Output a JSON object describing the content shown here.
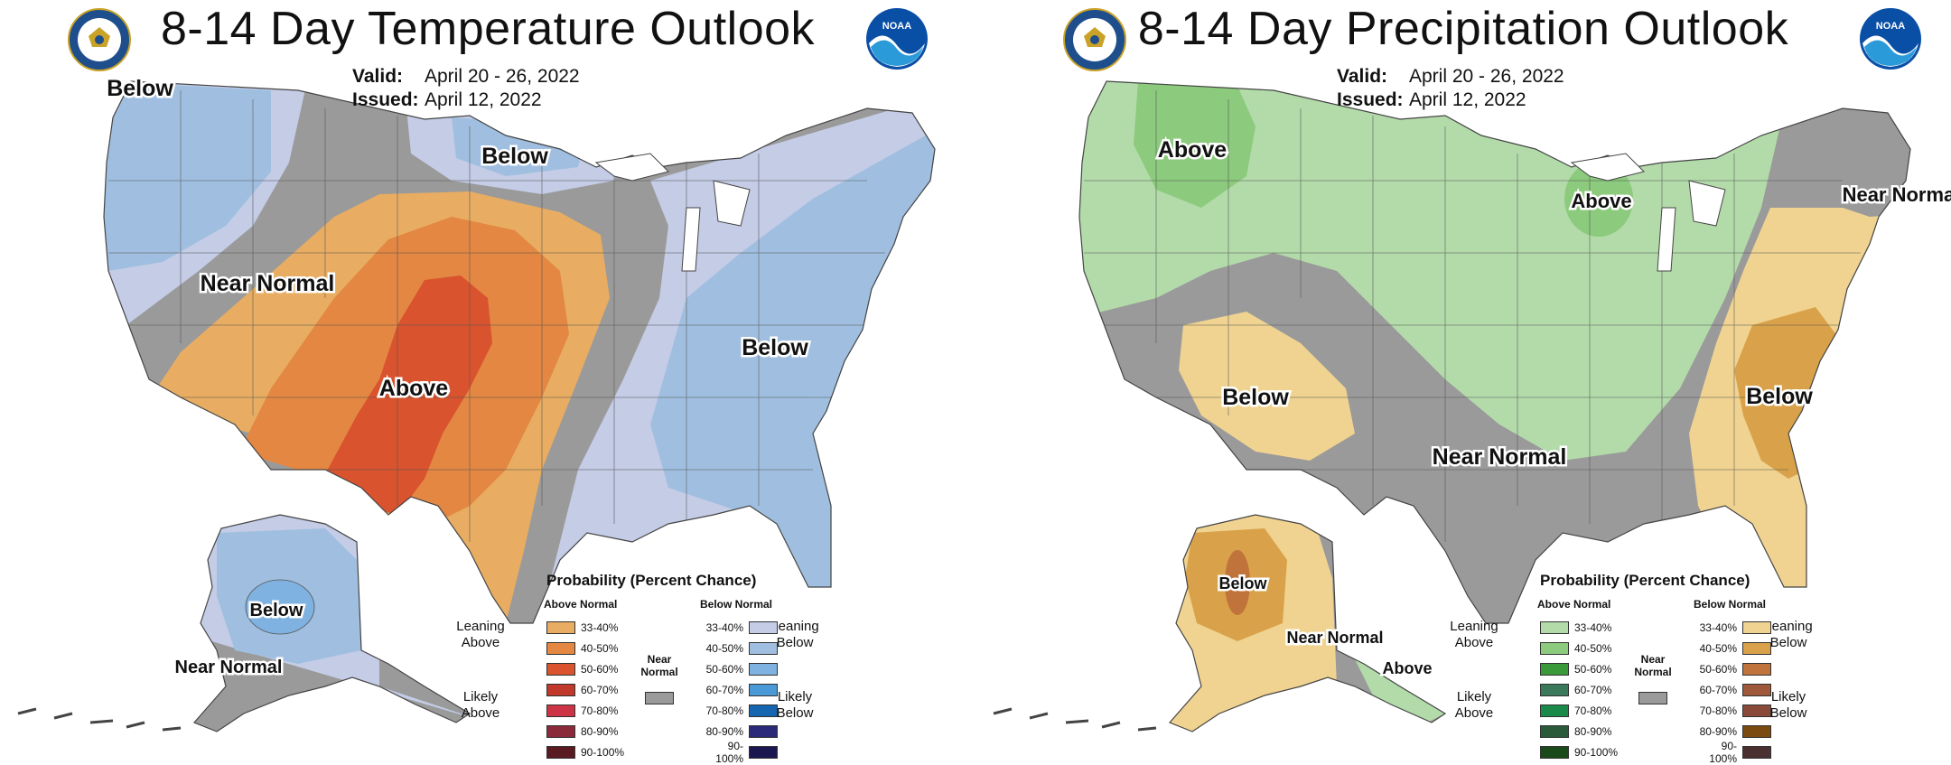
{
  "panels": [
    {
      "title": "8-14 Day Temperature Outlook",
      "valid_label": "Valid:",
      "valid": "April 20 - 26, 2022",
      "issued_label": "Issued:",
      "issued": "April 12, 2022",
      "labels": [
        "Below",
        "Below",
        "Near Normal",
        "Above",
        "Below",
        "Below",
        "Near Normal"
      ],
      "legend": {
        "title": "Probability (Percent Chance)",
        "above_header": "Above Normal",
        "below_header": "Below Normal",
        "near_normal": "Near Normal",
        "leaning_above": "Leaning Above",
        "likely_above": "Likely Above",
        "leaning_below": "Leaning Below",
        "likely_below": "Likely Below",
        "ranges": [
          "33-40%",
          "40-50%",
          "50-60%",
          "60-70%",
          "70-80%",
          "80-90%",
          "90-100%"
        ],
        "above_colors": [
          "#e8ad62",
          "#e38742",
          "#d9532e",
          "#c0392b",
          "#cc3344",
          "#8b2a3a",
          "#5a1a22"
        ],
        "below_colors": [
          "#c4cce6",
          "#a0bfe0",
          "#7fb2e0",
          "#4a9ad8",
          "#1565b0",
          "#2b2a7a",
          "#1a1650"
        ],
        "near_color": "#9a9a9a"
      }
    },
    {
      "title": "8-14 Day Precipitation Outlook",
      "valid_label": "Valid:",
      "valid": "April 20 - 26, 2022",
      "issued_label": "Issued:",
      "issued": "April 12, 2022",
      "labels": [
        "Above",
        "Above",
        "Near Normal",
        "Below",
        "Near Normal",
        "Below",
        "Below",
        "Near Normal",
        "Above"
      ],
      "legend": {
        "title": "Probability (Percent Chance)",
        "above_header": "Above Normal",
        "below_header": "Below Normal",
        "near_normal": "Near Normal",
        "leaning_above": "Leaning Above",
        "likely_above": "Likely Above",
        "leaning_below": "Leaning Below",
        "likely_below": "Likely Below",
        "ranges": [
          "33-40%",
          "40-50%",
          "50-60%",
          "60-70%",
          "70-80%",
          "80-90%",
          "90-100%"
        ],
        "above_colors": [
          "#b3dbaa",
          "#8cca7d",
          "#3a9a3a",
          "#3a7a5a",
          "#1a8a4a",
          "#2a5a3a",
          "#1a4a1a"
        ],
        "below_colors": [
          "#f0d391",
          "#d9a24a",
          "#c0733a",
          "#a0583a",
          "#8a4a3a",
          "#7a4a10",
          "#4a3030"
        ],
        "near_color": "#9a9a9a"
      }
    }
  ],
  "colors": {
    "temp_lean_below": "#c4cce6",
    "temp_below_40": "#a0bfe0",
    "temp_below_50": "#7fb2e0",
    "temp_lean_above": "#e8ad62",
    "temp_above_40": "#e38742",
    "temp_above_50": "#d9532e",
    "precip_lean_above": "#b3dbaa",
    "precip_above_40": "#8cca7d",
    "precip_lean_below": "#f0d391",
    "precip_below_40": "#d9a24a",
    "precip_below_50": "#c0733a",
    "near_normal": "#9a9a9a"
  }
}
